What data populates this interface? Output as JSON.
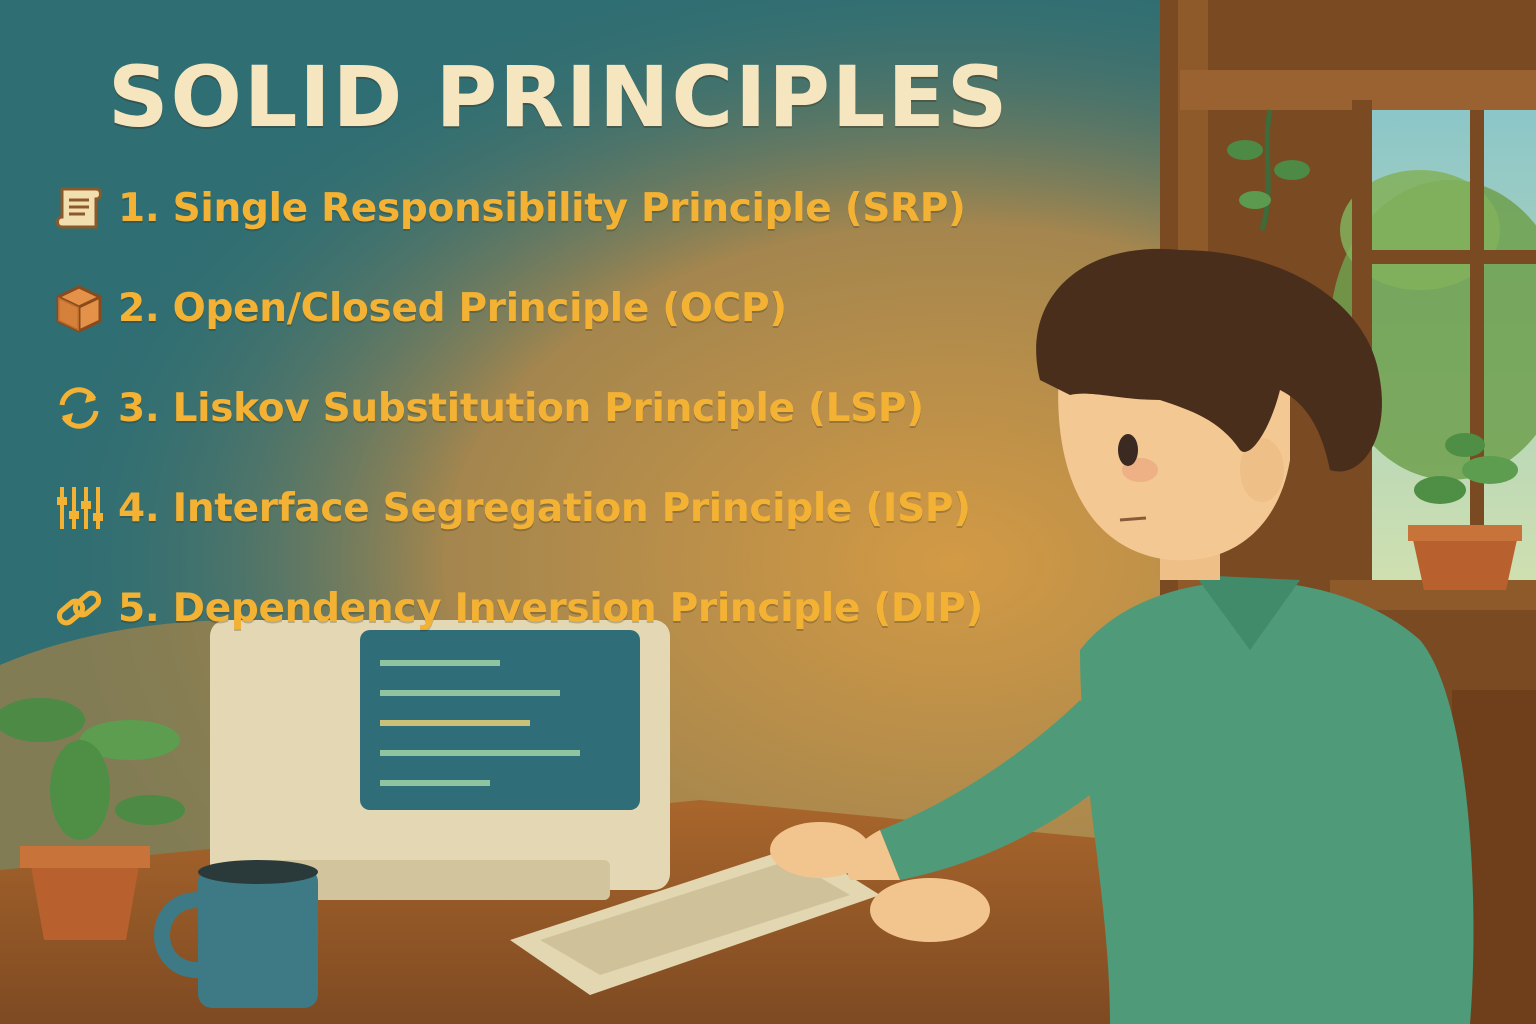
{
  "title": "SOLID PRINCIPLES",
  "principles": [
    {
      "label": "1. Single Responsibility Principle (SRP)",
      "icon": "scroll-icon"
    },
    {
      "label": "2. Open/Closed Principle (OCP)",
      "icon": "box-icon"
    },
    {
      "label": "3. Liskov Substitution Principle (LSP)",
      "icon": "cycle-arrows-icon"
    },
    {
      "label": "4. Interface Segregation Principle (ISP)",
      "icon": "sliders-icon"
    },
    {
      "label": "5. Dependency Inversion Principle (DIP)",
      "icon": "link-icon"
    }
  ],
  "colors": {
    "background_teal": "#2f6e73",
    "warm_ochre": "#c98a3a",
    "title_cream": "#f6e6bf",
    "principle_gold": "#f4b234",
    "shirt_green": "#4f9a78",
    "hair_brown": "#4a2e1c",
    "wood_brown": "#8a5526"
  }
}
